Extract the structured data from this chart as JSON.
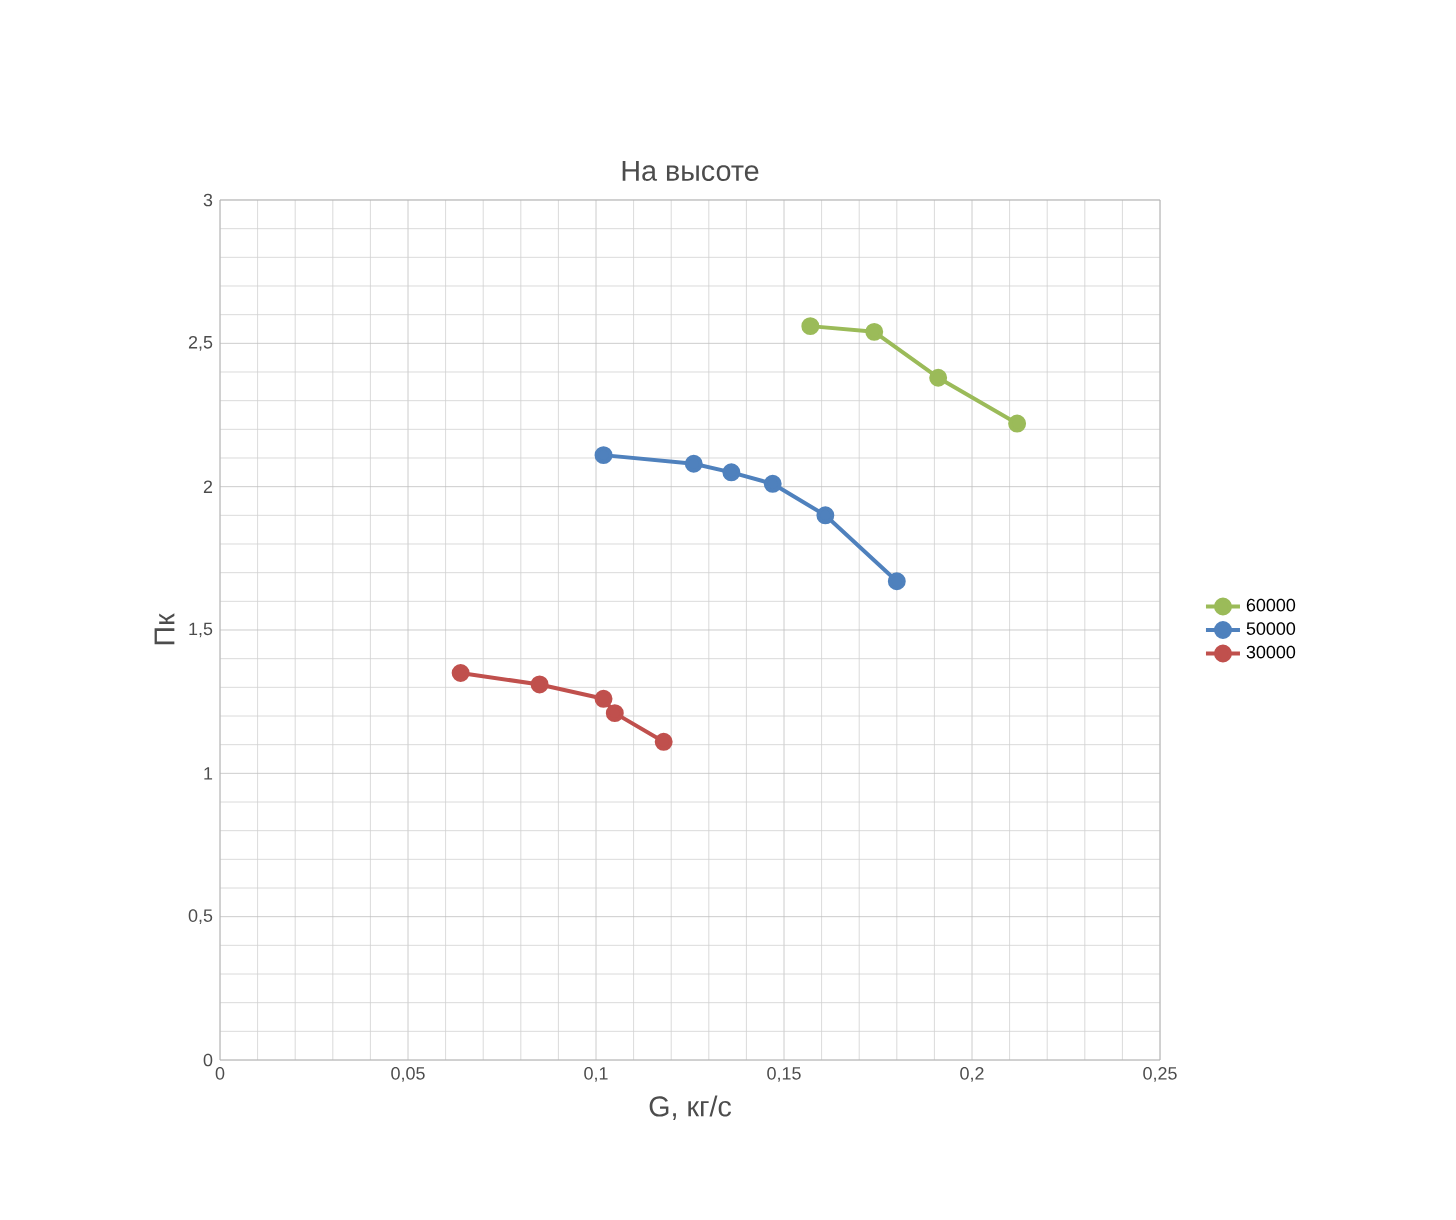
{
  "chart_data": {
    "type": "line",
    "title": "На высоте",
    "xlabel": "G, кг/с",
    "ylabel": "Пк",
    "xlim": [
      0,
      0.25
    ],
    "ylim": [
      0,
      3
    ],
    "xticks": [
      0,
      {
        "value": 0.05,
        "label": "0,05"
      },
      {
        "value": 0.1,
        "label": "0,1"
      },
      {
        "value": 0.15,
        "label": "0,15"
      },
      {
        "value": 0.2,
        "label": "0,2"
      },
      {
        "value": 0.25,
        "label": "0,25"
      }
    ],
    "yticks": [
      0,
      {
        "value": 0.5,
        "label": "0,5"
      },
      1,
      {
        "value": 1.5,
        "label": "1,5"
      },
      2,
      {
        "value": 2.5,
        "label": "2,5"
      },
      3
    ],
    "grid": true,
    "legend": "right",
    "marker": "circle",
    "line_style": "solid",
    "series": [
      {
        "name": "60000",
        "color": "#9bbb59",
        "x": [
          0.157,
          0.174,
          0.191,
          0.212
        ],
        "values": [
          2.56,
          2.54,
          2.38,
          2.22
        ]
      },
      {
        "name": "50000",
        "color": "#4f81bd",
        "x": [
          0.102,
          0.126,
          0.136,
          0.147,
          0.161,
          0.18
        ],
        "values": [
          2.11,
          2.08,
          2.05,
          2.01,
          1.9,
          1.67
        ]
      },
      {
        "name": "30000",
        "color": "#c0504d",
        "x": [
          0.064,
          0.085,
          0.102,
          0.105,
          0.118
        ],
        "values": [
          1.35,
          1.31,
          1.26,
          1.21,
          1.11
        ]
      }
    ]
  }
}
